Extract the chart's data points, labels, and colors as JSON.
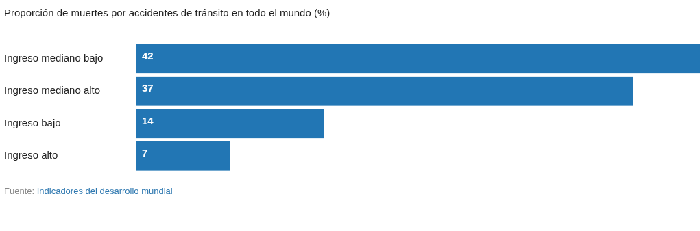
{
  "chart_data": {
    "type": "bar",
    "orientation": "horizontal",
    "title": "Proporción de muertes por accidentes de tránsito en todo el mundo (%)",
    "categories": [
      "Ingreso mediano bajo",
      "Ingreso mediano alto",
      "Ingreso bajo",
      "Ingreso alto"
    ],
    "values": [
      42,
      37,
      14,
      7
    ],
    "color": "#2276b4",
    "data_labels": true,
    "xlim": [
      0,
      42
    ],
    "annotations": [
      "Fuente: Indicadores del desarrollo mundial"
    ]
  }
}
